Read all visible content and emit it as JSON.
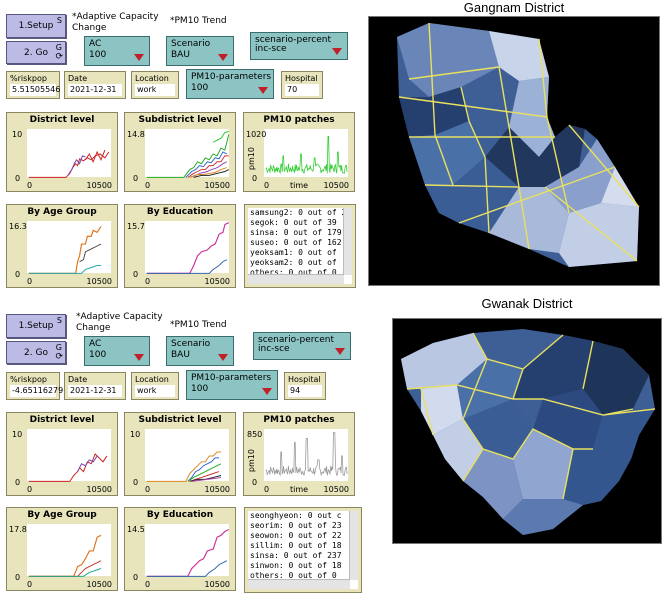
{
  "panels": [
    {
      "id": "gangnam",
      "setup": {
        "label": "1.Setup",
        "key": "S"
      },
      "go": {
        "label": "2. Go",
        "key": "G",
        "loop": "⟳"
      },
      "adaptive_note": "*Adaptive Capacity Change",
      "pm10_note": "*PM10 Trend",
      "ac": {
        "label": "AC",
        "value": "100"
      },
      "scenario": {
        "label": "Scenario",
        "value": "BAU"
      },
      "scenario_percent": {
        "label": "scenario-percent",
        "value": "inc-sce"
      },
      "riskpop": {
        "label": "%riskpop",
        "value": "5.51505546"
      },
      "date": {
        "label": "Date",
        "value": "2021-12-31"
      },
      "location": {
        "label": "Location",
        "value": "work"
      },
      "pm10_parameters": {
        "label": "PM10-parameters",
        "value": "100"
      },
      "hospital": {
        "label": "Hospital",
        "value": "70"
      },
      "plots": {
        "district": {
          "title": "District level",
          "ymax": "10",
          "ymin": "0",
          "xmin": "0",
          "xmax": "10500"
        },
        "subdistrict": {
          "title": "Subdistrict level",
          "ymax": "14.8",
          "ymin": "0",
          "xmin": "0",
          "xmax": "10500"
        },
        "pm10": {
          "title": "PM10 patches",
          "ymax": "1020",
          "ymin": "0",
          "xmin": "0",
          "xmax": "10500",
          "xlabel": "time",
          "ylabel": "pm10"
        },
        "age": {
          "title": "By Age Group",
          "ymax": "16.3",
          "ymin": "0",
          "xmin": "0",
          "xmax": "10500"
        },
        "edu": {
          "title": "By Education",
          "ymax": "15.7",
          "ymin": "0",
          "xmin": "0",
          "xmax": "10500"
        }
      },
      "output_lines": [
        "samsung2: 0 out of 2",
        "segok: 0 out of 39",
        "sinsa: 0 out of 179",
        "suseo: 0 out of 162",
        "yeoksam1: 0 out of",
        "yeoksam2: 0 out of",
        "others: 0 out of 0"
      ],
      "map_title": "Gangnam District"
    },
    {
      "id": "gwanak",
      "setup": {
        "label": "1.Setup",
        "key": "S"
      },
      "go": {
        "label": "2. Go",
        "key": "G",
        "loop": "⟳"
      },
      "adaptive_note": "*Adaptive Capacity Change",
      "pm10_note": "*PM10 Trend",
      "ac": {
        "label": "AC",
        "value": "100"
      },
      "scenario": {
        "label": "Scenario",
        "value": "BAU"
      },
      "scenario_percent": {
        "label": "scenario-percent",
        "value": "inc-sce"
      },
      "riskpop": {
        "label": "%riskpop",
        "value": "-4.65116279"
      },
      "date": {
        "label": "Date",
        "value": "2021-12-31"
      },
      "location": {
        "label": "Location",
        "value": "work"
      },
      "pm10_parameters": {
        "label": "PM10-parameters",
        "value": "100"
      },
      "hospital": {
        "label": "Hospital",
        "value": "94"
      },
      "plots": {
        "district": {
          "title": "District level",
          "ymax": "10",
          "ymin": "0",
          "xmin": "0",
          "xmax": "10500"
        },
        "subdistrict": {
          "title": "Subdistrict level",
          "ymax": "10",
          "ymin": "0",
          "xmin": "0",
          "xmax": "10500"
        },
        "pm10": {
          "title": "PM10 patches",
          "ymax": "850",
          "ymin": "0",
          "xmin": "0",
          "xmax": "10500",
          "xlabel": "time",
          "ylabel": "pm10"
        },
        "age": {
          "title": "By Age Group",
          "ymax": "17.8",
          "ymin": "0",
          "xmin": "0",
          "xmax": "10500"
        },
        "edu": {
          "title": "By Education",
          "ymax": "14.5",
          "ymin": "0",
          "xmin": "0",
          "xmax": "10500"
        }
      },
      "output_lines": [
        "seonghyeon: 0 out c",
        "seorim: 0 out of 23",
        "seowon: 0 out of 22",
        "sillim: 0 out of 18",
        "sinsa: 0 out of 237",
        "sinwon: 0 out of 18",
        "others: 0 out of 0"
      ],
      "map_title": "Gwanak District"
    }
  ],
  "colors": {
    "button": "#bcbbe6",
    "chooser": "#8cc4c4",
    "monitor": "#e8e5bc",
    "dropdown_arrow": "#c0202a",
    "pm10_gangnam": "#33cc33",
    "pm10_gwanak": "#999999",
    "road": "#e8e060"
  }
}
